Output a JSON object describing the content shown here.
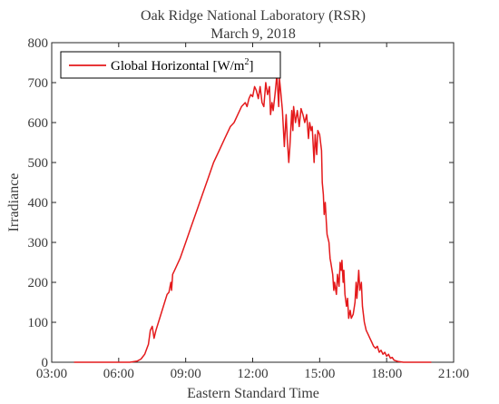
{
  "chart_data": {
    "type": "line",
    "title": "Oak Ridge National Laboratory (RSR)",
    "subtitle": "March 9, 2018",
    "xlabel": "Eastern Standard Time",
    "ylabel": "Irradiance",
    "xlim": [
      "03:00",
      "21:00"
    ],
    "ylim": [
      0,
      800
    ],
    "xticks": [
      "03:00",
      "06:00",
      "09:00",
      "12:00",
      "15:00",
      "18:00",
      "21:00"
    ],
    "yticks": [
      "0",
      "100",
      "200",
      "300",
      "400",
      "500",
      "600",
      "700",
      "800"
    ],
    "grid": false,
    "legend_position": "top-left",
    "series": [
      {
        "name": "Global Horizontal [W/m",
        "name_sup": "2",
        "name_suffix": "]",
        "color": "#e41a1c",
        "points": [
          [
            "04:00",
            0
          ],
          [
            "06:30",
            0
          ],
          [
            "06:50",
            3
          ],
          [
            "07:00",
            8
          ],
          [
            "07:10",
            20
          ],
          [
            "07:20",
            45
          ],
          [
            "07:25",
            80
          ],
          [
            "07:30",
            90
          ],
          [
            "07:35",
            60
          ],
          [
            "07:40",
            80
          ],
          [
            "07:50",
            110
          ],
          [
            "08:00",
            140
          ],
          [
            "08:10",
            170
          ],
          [
            "08:15",
            175
          ],
          [
            "08:20",
            200
          ],
          [
            "08:22",
            180
          ],
          [
            "08:25",
            220
          ],
          [
            "08:30",
            230
          ],
          [
            "08:45",
            260
          ],
          [
            "09:00",
            300
          ],
          [
            "09:15",
            340
          ],
          [
            "09:30",
            380
          ],
          [
            "09:45",
            420
          ],
          [
            "10:00",
            460
          ],
          [
            "10:15",
            500
          ],
          [
            "10:30",
            530
          ],
          [
            "10:45",
            560
          ],
          [
            "11:00",
            590
          ],
          [
            "11:10",
            600
          ],
          [
            "11:20",
            620
          ],
          [
            "11:30",
            640
          ],
          [
            "11:40",
            650
          ],
          [
            "11:45",
            640
          ],
          [
            "11:50",
            660
          ],
          [
            "11:55",
            670
          ],
          [
            "12:00",
            665
          ],
          [
            "12:05",
            690
          ],
          [
            "12:10",
            680
          ],
          [
            "12:15",
            660
          ],
          [
            "12:20",
            690
          ],
          [
            "12:25",
            650
          ],
          [
            "12:30",
            640
          ],
          [
            "12:35",
            700
          ],
          [
            "12:40",
            670
          ],
          [
            "12:45",
            690
          ],
          [
            "12:48",
            620
          ],
          [
            "12:52",
            650
          ],
          [
            "12:55",
            630
          ],
          [
            "13:00",
            670
          ],
          [
            "13:05",
            720
          ],
          [
            "13:10",
            640
          ],
          [
            "13:12",
            710
          ],
          [
            "13:15",
            680
          ],
          [
            "13:20",
            630
          ],
          [
            "13:25",
            540
          ],
          [
            "13:28",
            590
          ],
          [
            "13:30",
            620
          ],
          [
            "13:33",
            560
          ],
          [
            "13:37",
            500
          ],
          [
            "13:40",
            540
          ],
          [
            "13:45",
            630
          ],
          [
            "13:48",
            580
          ],
          [
            "13:50",
            640
          ],
          [
            "13:55",
            600
          ],
          [
            "14:00",
            630
          ],
          [
            "14:05",
            590
          ],
          [
            "14:10",
            635
          ],
          [
            "14:15",
            620
          ],
          [
            "14:20",
            600
          ],
          [
            "14:25",
            620
          ],
          [
            "14:30",
            560
          ],
          [
            "14:33",
            600
          ],
          [
            "14:37",
            580
          ],
          [
            "14:40",
            590
          ],
          [
            "14:45",
            500
          ],
          [
            "14:48",
            570
          ],
          [
            "14:52",
            520
          ],
          [
            "14:55",
            580
          ],
          [
            "15:00",
            570
          ],
          [
            "15:05",
            530
          ],
          [
            "15:07",
            450
          ],
          [
            "15:10",
            420
          ],
          [
            "15:12",
            370
          ],
          [
            "15:15",
            400
          ],
          [
            "15:18",
            350
          ],
          [
            "15:20",
            320
          ],
          [
            "15:25",
            300
          ],
          [
            "15:28",
            260
          ],
          [
            "15:30",
            250
          ],
          [
            "15:35",
            220
          ],
          [
            "15:38",
            180
          ],
          [
            "15:40",
            200
          ],
          [
            "15:45",
            170
          ],
          [
            "15:48",
            220
          ],
          [
            "15:52",
            190
          ],
          [
            "15:55",
            250
          ],
          [
            "15:58",
            230
          ],
          [
            "16:00",
            255
          ],
          [
            "16:03",
            200
          ],
          [
            "16:05",
            230
          ],
          [
            "16:08",
            170
          ],
          [
            "16:12",
            140
          ],
          [
            "16:15",
            160
          ],
          [
            "16:18",
            110
          ],
          [
            "16:22",
            130
          ],
          [
            "16:25",
            110
          ],
          [
            "16:30",
            120
          ],
          [
            "16:35",
            150
          ],
          [
            "16:38",
            200
          ],
          [
            "16:40",
            160
          ],
          [
            "16:45",
            230
          ],
          [
            "16:48",
            180
          ],
          [
            "16:52",
            200
          ],
          [
            "16:55",
            140
          ],
          [
            "17:00",
            100
          ],
          [
            "17:05",
            80
          ],
          [
            "17:10",
            70
          ],
          [
            "17:15",
            60
          ],
          [
            "17:20",
            50
          ],
          [
            "17:25",
            40
          ],
          [
            "17:30",
            35
          ],
          [
            "17:35",
            40
          ],
          [
            "17:40",
            25
          ],
          [
            "17:45",
            30
          ],
          [
            "17:50",
            20
          ],
          [
            "17:55",
            25
          ],
          [
            "18:00",
            15
          ],
          [
            "18:05",
            20
          ],
          [
            "18:10",
            10
          ],
          [
            "18:15",
            12
          ],
          [
            "18:20",
            5
          ],
          [
            "18:30",
            2
          ],
          [
            "18:45",
            0
          ],
          [
            "20:00",
            0
          ]
        ]
      }
    ]
  }
}
